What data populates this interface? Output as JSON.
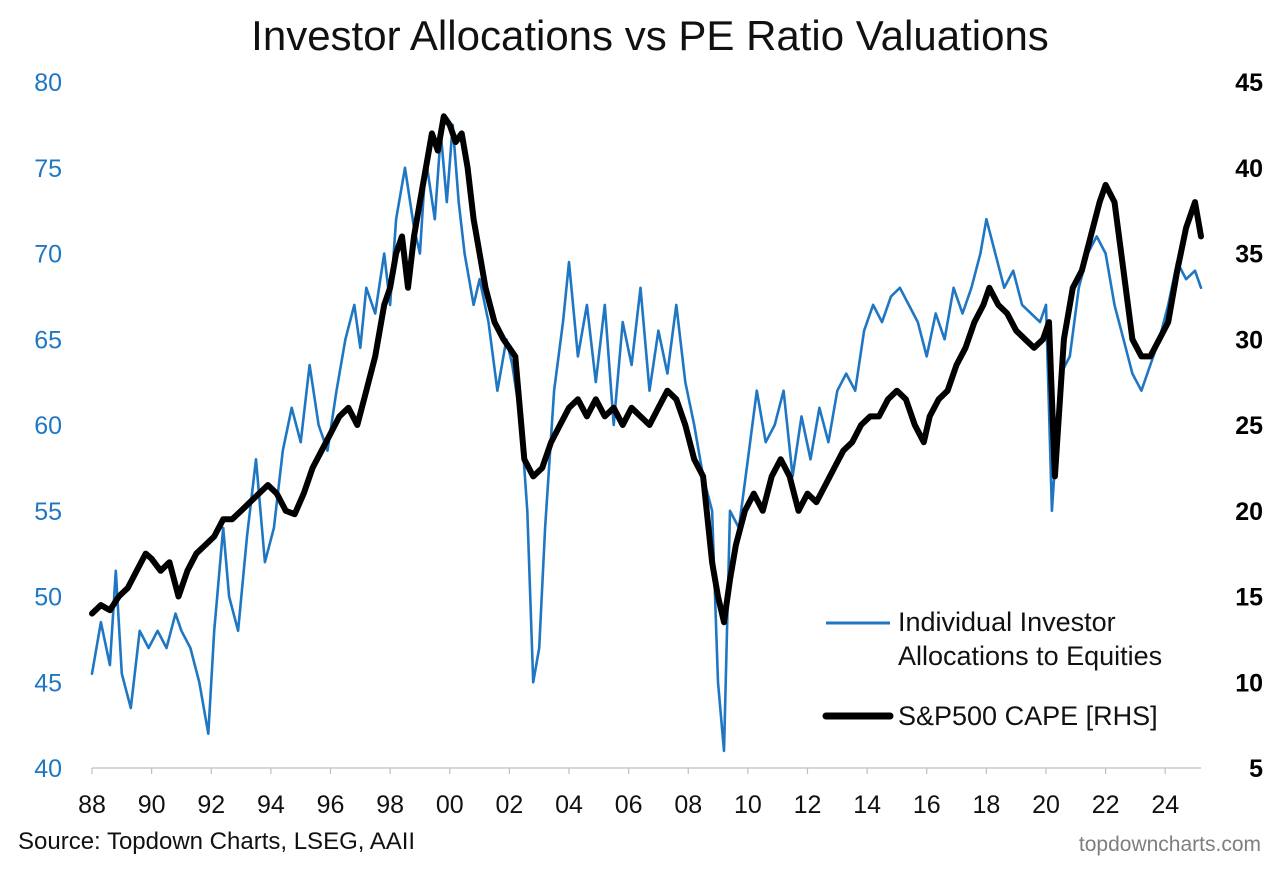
{
  "chart_data": {
    "type": "line",
    "title": "Investor Allocations vs PE Ratio Valuations",
    "x_axis": {
      "range_years": [
        1988,
        2025.2
      ],
      "tick_values": [
        1988,
        1990,
        1992,
        1994,
        1996,
        1998,
        2000,
        2002,
        2004,
        2006,
        2008,
        2010,
        2012,
        2014,
        2016,
        2018,
        2020,
        2022,
        2024
      ],
      "tick_labels": [
        "88",
        "90",
        "92",
        "94",
        "96",
        "98",
        "00",
        "02",
        "04",
        "06",
        "08",
        "10",
        "12",
        "14",
        "16",
        "18",
        "20",
        "22",
        "24"
      ]
    },
    "y_left": {
      "range": [
        40,
        80
      ],
      "ticks": [
        40,
        45,
        50,
        55,
        60,
        65,
        70,
        75,
        80
      ],
      "color": "#1f77c4"
    },
    "y_right": {
      "range": [
        5,
        45
      ],
      "ticks": [
        5,
        10,
        15,
        20,
        25,
        30,
        35,
        40,
        45
      ],
      "color": "#000000"
    },
    "grid": false,
    "legend_position": "bottom-right",
    "series": [
      {
        "name_lines": [
          "Individual Investor",
          "Allocations to Equities"
        ],
        "axis": "left",
        "color": "#1f77c4",
        "x": [
          1988.0,
          1988.3,
          1988.6,
          1988.8,
          1989.0,
          1989.3,
          1989.6,
          1989.9,
          1990.2,
          1990.5,
          1990.8,
          1991.0,
          1991.3,
          1991.6,
          1991.9,
          1992.1,
          1992.4,
          1992.6,
          1992.9,
          1993.2,
          1993.5,
          1993.8,
          1994.1,
          1994.4,
          1994.7,
          1995.0,
          1995.3,
          1995.6,
          1995.9,
          1996.2,
          1996.5,
          1996.8,
          1997.0,
          1997.2,
          1997.5,
          1997.8,
          1998.0,
          1998.2,
          1998.5,
          1998.8,
          1999.0,
          1999.2,
          1999.5,
          1999.7,
          1999.9,
          2000.1,
          2000.3,
          2000.5,
          2000.8,
          2001.0,
          2001.3,
          2001.6,
          2001.9,
          2002.1,
          2002.4,
          2002.6,
          2002.8,
          2003.0,
          2003.2,
          2003.5,
          2003.8,
          2004.0,
          2004.3,
          2004.6,
          2004.9,
          2005.2,
          2005.5,
          2005.8,
          2006.1,
          2006.4,
          2006.7,
          2007.0,
          2007.3,
          2007.6,
          2007.9,
          2008.2,
          2008.5,
          2008.8,
          2009.0,
          2009.2,
          2009.4,
          2009.7,
          2010.0,
          2010.3,
          2010.6,
          2010.9,
          2011.2,
          2011.5,
          2011.8,
          2012.1,
          2012.4,
          2012.7,
          2013.0,
          2013.3,
          2013.6,
          2013.9,
          2014.2,
          2014.5,
          2014.8,
          2015.1,
          2015.4,
          2015.7,
          2016.0,
          2016.3,
          2016.6,
          2016.9,
          2017.2,
          2017.5,
          2017.8,
          2018.0,
          2018.3,
          2018.6,
          2018.9,
          2019.2,
          2019.5,
          2019.8,
          2020.0,
          2020.2,
          2020.5,
          2020.8,
          2021.1,
          2021.4,
          2021.7,
          2022.0,
          2022.3,
          2022.6,
          2022.9,
          2023.2,
          2023.5,
          2023.8,
          2024.1,
          2024.4,
          2024.7,
          2025.0,
          2025.2
        ],
        "y": [
          45.5,
          48.5,
          46.0,
          51.5,
          45.5,
          43.5,
          48.0,
          47.0,
          48.0,
          47.0,
          49.0,
          48.0,
          47.0,
          45.0,
          42.0,
          48.0,
          54.0,
          50.0,
          48.0,
          53.5,
          58.0,
          52.0,
          54.0,
          58.5,
          61.0,
          59.0,
          63.5,
          60.0,
          58.5,
          62.0,
          65.0,
          67.0,
          64.5,
          68.0,
          66.5,
          70.0,
          67.0,
          72.0,
          75.0,
          71.5,
          70.0,
          75.5,
          72.0,
          77.0,
          73.0,
          77.5,
          73.0,
          70.0,
          67.0,
          68.5,
          66.0,
          62.0,
          65.0,
          63.5,
          60.0,
          55.0,
          45.0,
          47.0,
          54.0,
          62.0,
          66.0,
          69.5,
          64.0,
          67.0,
          62.5,
          67.0,
          60.0,
          66.0,
          63.5,
          68.0,
          62.0,
          65.5,
          63.0,
          67.0,
          62.5,
          60.0,
          57.0,
          55.0,
          45.0,
          41.0,
          55.0,
          54.0,
          58.0,
          62.0,
          59.0,
          60.0,
          62.0,
          57.0,
          60.5,
          58.0,
          61.0,
          59.0,
          62.0,
          63.0,
          62.0,
          65.5,
          67.0,
          66.0,
          67.5,
          68.0,
          67.0,
          66.0,
          64.0,
          66.5,
          65.0,
          68.0,
          66.5,
          68.0,
          70.0,
          72.0,
          70.0,
          68.0,
          69.0,
          67.0,
          66.5,
          66.0,
          67.0,
          55.0,
          63.0,
          64.0,
          68.0,
          70.0,
          71.0,
          70.0,
          67.0,
          65.0,
          63.0,
          62.0,
          63.5,
          65.0,
          67.0,
          69.5,
          68.5,
          69.0,
          68.0
        ]
      },
      {
        "name": "S&P500 CAPE [RHS]",
        "axis": "right",
        "color": "#000000",
        "x": [
          1988.0,
          1988.3,
          1988.6,
          1988.9,
          1989.2,
          1989.5,
          1989.8,
          1990.0,
          1990.3,
          1990.6,
          1990.9,
          1991.2,
          1991.5,
          1991.8,
          1992.1,
          1992.4,
          1992.7,
          1993.0,
          1993.3,
          1993.6,
          1993.9,
          1994.2,
          1994.5,
          1994.8,
          1995.1,
          1995.4,
          1995.7,
          1996.0,
          1996.3,
          1996.6,
          1996.9,
          1997.2,
          1997.5,
          1997.8,
          1998.0,
          1998.2,
          1998.4,
          1998.6,
          1998.8,
          1999.0,
          1999.2,
          1999.4,
          1999.6,
          1999.8,
          2000.0,
          2000.2,
          2000.4,
          2000.6,
          2000.8,
          2001.0,
          2001.2,
          2001.5,
          2001.8,
          2002.0,
          2002.2,
          2002.5,
          2002.8,
          2003.1,
          2003.4,
          2003.7,
          2004.0,
          2004.3,
          2004.6,
          2004.9,
          2005.2,
          2005.5,
          2005.8,
          2006.1,
          2006.4,
          2006.7,
          2007.0,
          2007.3,
          2007.6,
          2007.9,
          2008.2,
          2008.5,
          2008.8,
          2009.0,
          2009.2,
          2009.4,
          2009.6,
          2009.9,
          2010.2,
          2010.5,
          2010.8,
          2011.1,
          2011.4,
          2011.7,
          2012.0,
          2012.3,
          2012.6,
          2012.9,
          2013.2,
          2013.5,
          2013.8,
          2014.1,
          2014.4,
          2014.7,
          2015.0,
          2015.3,
          2015.6,
          2015.9,
          2016.1,
          2016.4,
          2016.7,
          2017.0,
          2017.3,
          2017.6,
          2017.9,
          2018.1,
          2018.4,
          2018.7,
          2019.0,
          2019.3,
          2019.6,
          2019.9,
          2020.1,
          2020.3,
          2020.6,
          2020.9,
          2021.2,
          2021.5,
          2021.8,
          2022.0,
          2022.3,
          2022.6,
          2022.9,
          2023.2,
          2023.5,
          2023.8,
          2024.1,
          2024.4,
          2024.7,
          2025.0,
          2025.2
        ],
        "y": [
          14.0,
          14.5,
          14.2,
          15.0,
          15.5,
          16.5,
          17.5,
          17.2,
          16.5,
          17.0,
          15.0,
          16.5,
          17.5,
          18.0,
          18.5,
          19.5,
          19.5,
          20.0,
          20.5,
          21.0,
          21.5,
          21.0,
          20.0,
          19.8,
          21.0,
          22.5,
          23.5,
          24.5,
          25.5,
          26.0,
          25.0,
          27.0,
          29.0,
          32.0,
          33.0,
          35.0,
          36.0,
          33.0,
          36.0,
          38.0,
          40.0,
          42.0,
          41.0,
          43.0,
          42.5,
          41.5,
          42.0,
          40.0,
          37.0,
          35.0,
          33.0,
          31.0,
          30.0,
          29.5,
          29.0,
          23.0,
          22.0,
          22.5,
          24.0,
          25.0,
          26.0,
          26.5,
          25.5,
          26.5,
          25.5,
          26.0,
          25.0,
          26.0,
          25.5,
          25.0,
          26.0,
          27.0,
          26.5,
          25.0,
          23.0,
          22.0,
          17.0,
          15.0,
          13.5,
          16.0,
          18.0,
          20.0,
          21.0,
          20.0,
          22.0,
          23.0,
          22.0,
          20.0,
          21.0,
          20.5,
          21.5,
          22.5,
          23.5,
          24.0,
          25.0,
          25.5,
          25.5,
          26.5,
          27.0,
          26.5,
          25.0,
          24.0,
          25.5,
          26.5,
          27.0,
          28.5,
          29.5,
          31.0,
          32.0,
          33.0,
          32.0,
          31.5,
          30.5,
          30.0,
          29.5,
          30.0,
          31.0,
          22.0,
          30.0,
          33.0,
          34.0,
          36.0,
          38.0,
          39.0,
          38.0,
          34.0,
          30.0,
          29.0,
          29.0,
          30.0,
          31.0,
          34.0,
          36.5,
          38.0,
          36.0
        ]
      }
    ]
  },
  "footer": {
    "source": "Source: Topdown Charts, LSEG, AAII",
    "brand": "topdowncharts.com"
  }
}
